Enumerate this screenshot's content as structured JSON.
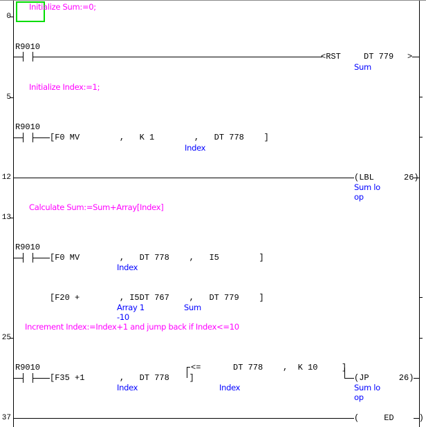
{
  "colors": {
    "comment": "#ff00ff",
    "variable": "#0000ff",
    "cursor": "#00dd00"
  },
  "row_numbers": [
    "0",
    "5",
    "12",
    "13",
    "25",
    "37"
  ],
  "comments": [
    "Initialize Sum:=0;",
    "Initialize Index:=1;",
    "Calculate Sum:=Sum+Array[Index]",
    "Increment Index:=Index+1 and jump back if Index<=10"
  ],
  "rungs": {
    "r1": {
      "contact": "R9010",
      "coil": "<RST",
      "operand": "DT 779",
      "var": "Sum",
      "end": ">"
    },
    "r2": {
      "contact": "R9010",
      "instr": "[F0 MV        ,   K 1        ,   DT 778    ]",
      "var": "Index"
    },
    "r3": {
      "coil": "(LBL      26)",
      "var1": "Sum lo",
      "var2": "op"
    },
    "r4": {
      "contact": "R9010",
      "instr": "[F0 MV        ,   DT 778    ,   I5        ]",
      "var": "Index"
    },
    "r5": {
      "instr": "[F20 +        , I5DT 767    ,   DT 779    ]",
      "var1": "Array 1",
      "var2": "-10",
      "var3": "Sum"
    },
    "r6": {
      "contact": "R9010",
      "instr": "[F35 +1       ,   DT 778    ]",
      "cmp": "<=",
      "cmp_operands": "DT 778    ,  K 10",
      "cmp_close": "]",
      "var1": "Index",
      "var2": "Index",
      "coil": "(JP      26)",
      "cvar1": "Sum lo",
      "cvar2": "op"
    },
    "end": {
      "coil": "(     ED     )"
    }
  }
}
